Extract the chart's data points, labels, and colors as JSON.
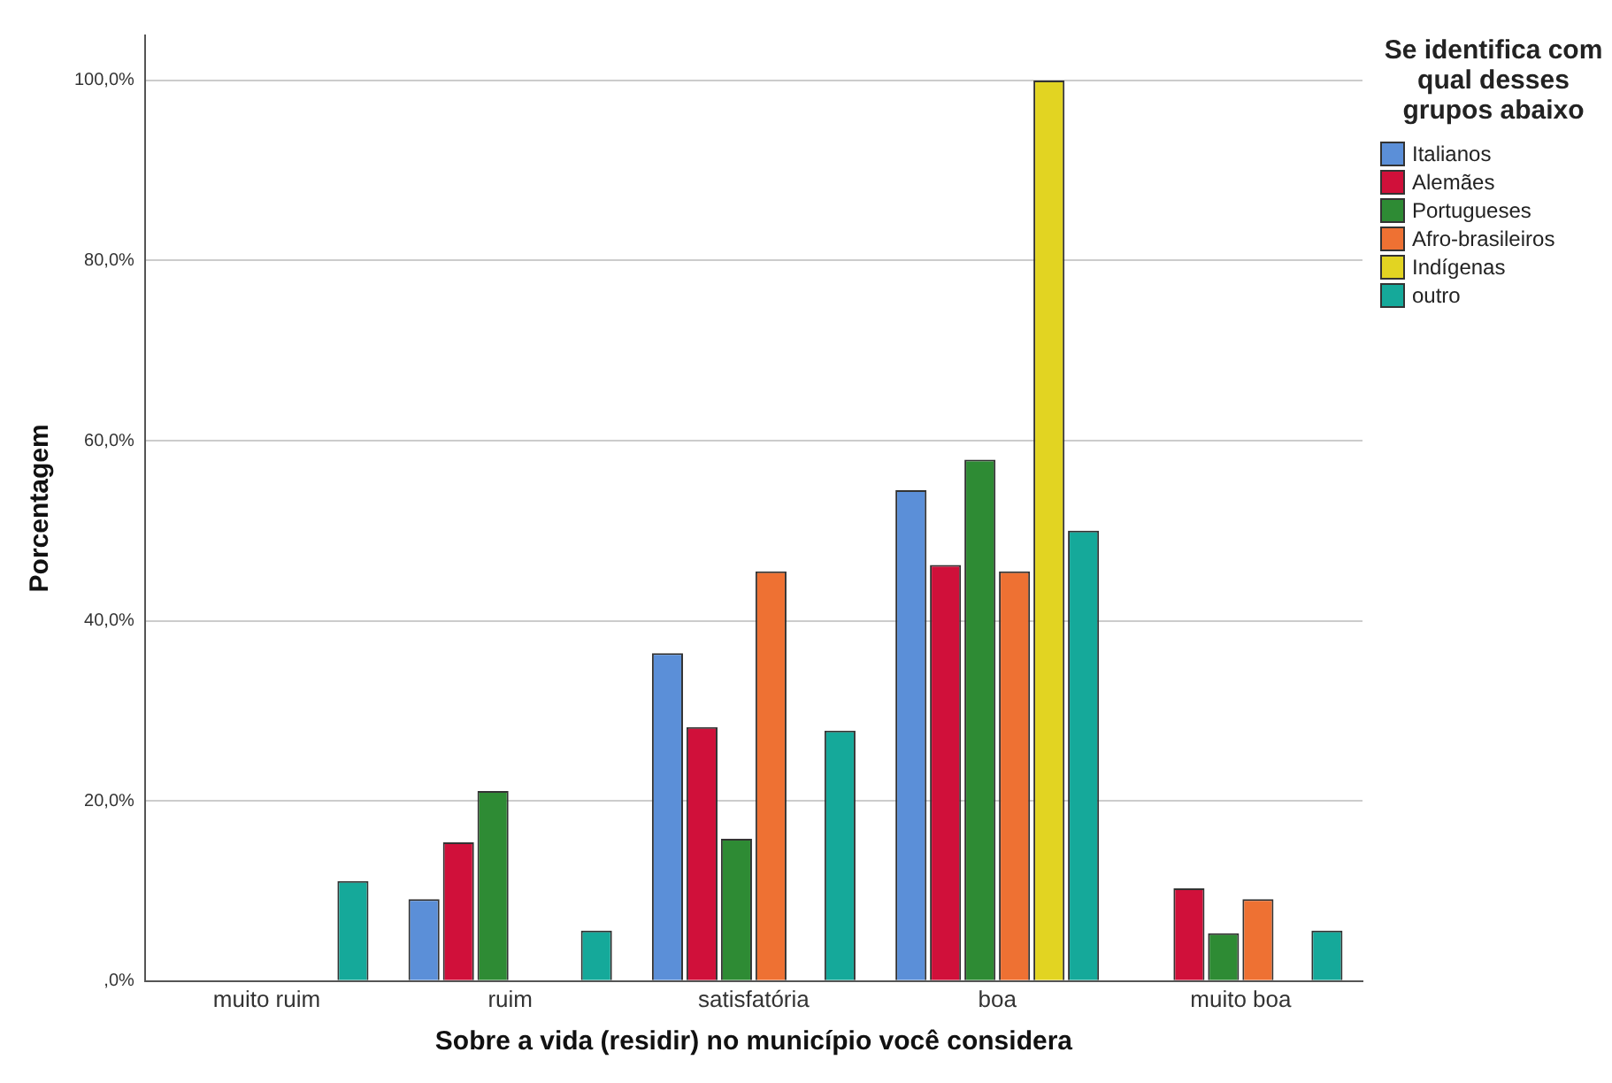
{
  "chart_data": {
    "type": "bar",
    "xlabel": "Sobre a vida (residir) no município você considera",
    "ylabel": "Porcentagem",
    "legend_title": "Se identifica com qual desses grupos abaixo",
    "legend": "top right",
    "grid": "y",
    "categories": [
      "muito ruim",
      "ruim",
      "satisfatória",
      "boa",
      "muito boa"
    ],
    "ylim": [
      0,
      105
    ],
    "yticks": [
      {
        "value": 0,
        "label": ",0%"
      },
      {
        "value": 20,
        "label": "20,0%"
      },
      {
        "value": 40,
        "label": "40,0%"
      },
      {
        "value": 60,
        "label": "60,0%"
      },
      {
        "value": 80,
        "label": "80,0%"
      },
      {
        "value": 100,
        "label": "100,0%"
      }
    ],
    "series": [
      {
        "name": "Italianos",
        "color": "#5b8fd8",
        "values": [
          0,
          9.1,
          36.4,
          54.5,
          0
        ]
      },
      {
        "name": "Alemães",
        "color": "#d0103a",
        "values": [
          0,
          15.4,
          28.2,
          46.2,
          10.3
        ]
      },
      {
        "name": "Portugueses",
        "color": "#2e8b34",
        "values": [
          0,
          21.1,
          15.8,
          57.9,
          5.3
        ]
      },
      {
        "name": "Afro-brasileiros",
        "color": "#ee7133",
        "values": [
          0,
          0,
          45.5,
          45.5,
          9.1
        ]
      },
      {
        "name": "Indígenas",
        "color": "#e2d422",
        "values": [
          0,
          0,
          0,
          100,
          0
        ]
      },
      {
        "name": "outro",
        "color": "#15a99a",
        "values": [
          11.1,
          5.6,
          27.8,
          50,
          5.6
        ]
      }
    ]
  }
}
